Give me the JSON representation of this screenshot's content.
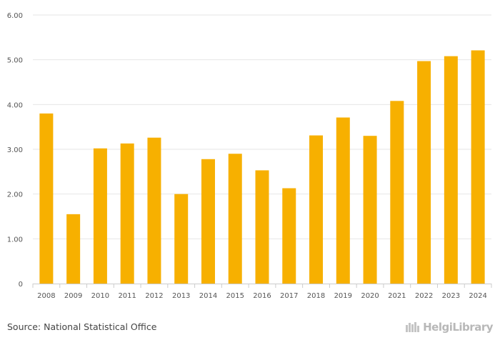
{
  "chart_data": {
    "type": "bar",
    "title": "",
    "xlabel": "",
    "ylabel": "",
    "categories": [
      "2008",
      "2009",
      "2010",
      "2011",
      "2012",
      "2013",
      "2014",
      "2015",
      "2016",
      "2017",
      "2018",
      "2019",
      "2020",
      "2021",
      "2022",
      "2023",
      "2024"
    ],
    "values": [
      3.8,
      1.55,
      3.02,
      3.13,
      3.26,
      2.0,
      2.78,
      2.9,
      2.53,
      2.13,
      3.31,
      3.71,
      3.3,
      4.08,
      4.97,
      5.08,
      5.21
    ],
    "ylim": [
      0,
      6
    ],
    "yticks": [
      0,
      1,
      2,
      3,
      4,
      5,
      6
    ],
    "ytick_labels": [
      "0",
      "1.00",
      "2.00",
      "3.00",
      "4.00",
      "5.00",
      "6.00"
    ],
    "grid": true,
    "bar_color": "#f7b000"
  },
  "footer": {
    "source": "Source: National Statistical Office",
    "brand": "HelgiLibrary"
  }
}
